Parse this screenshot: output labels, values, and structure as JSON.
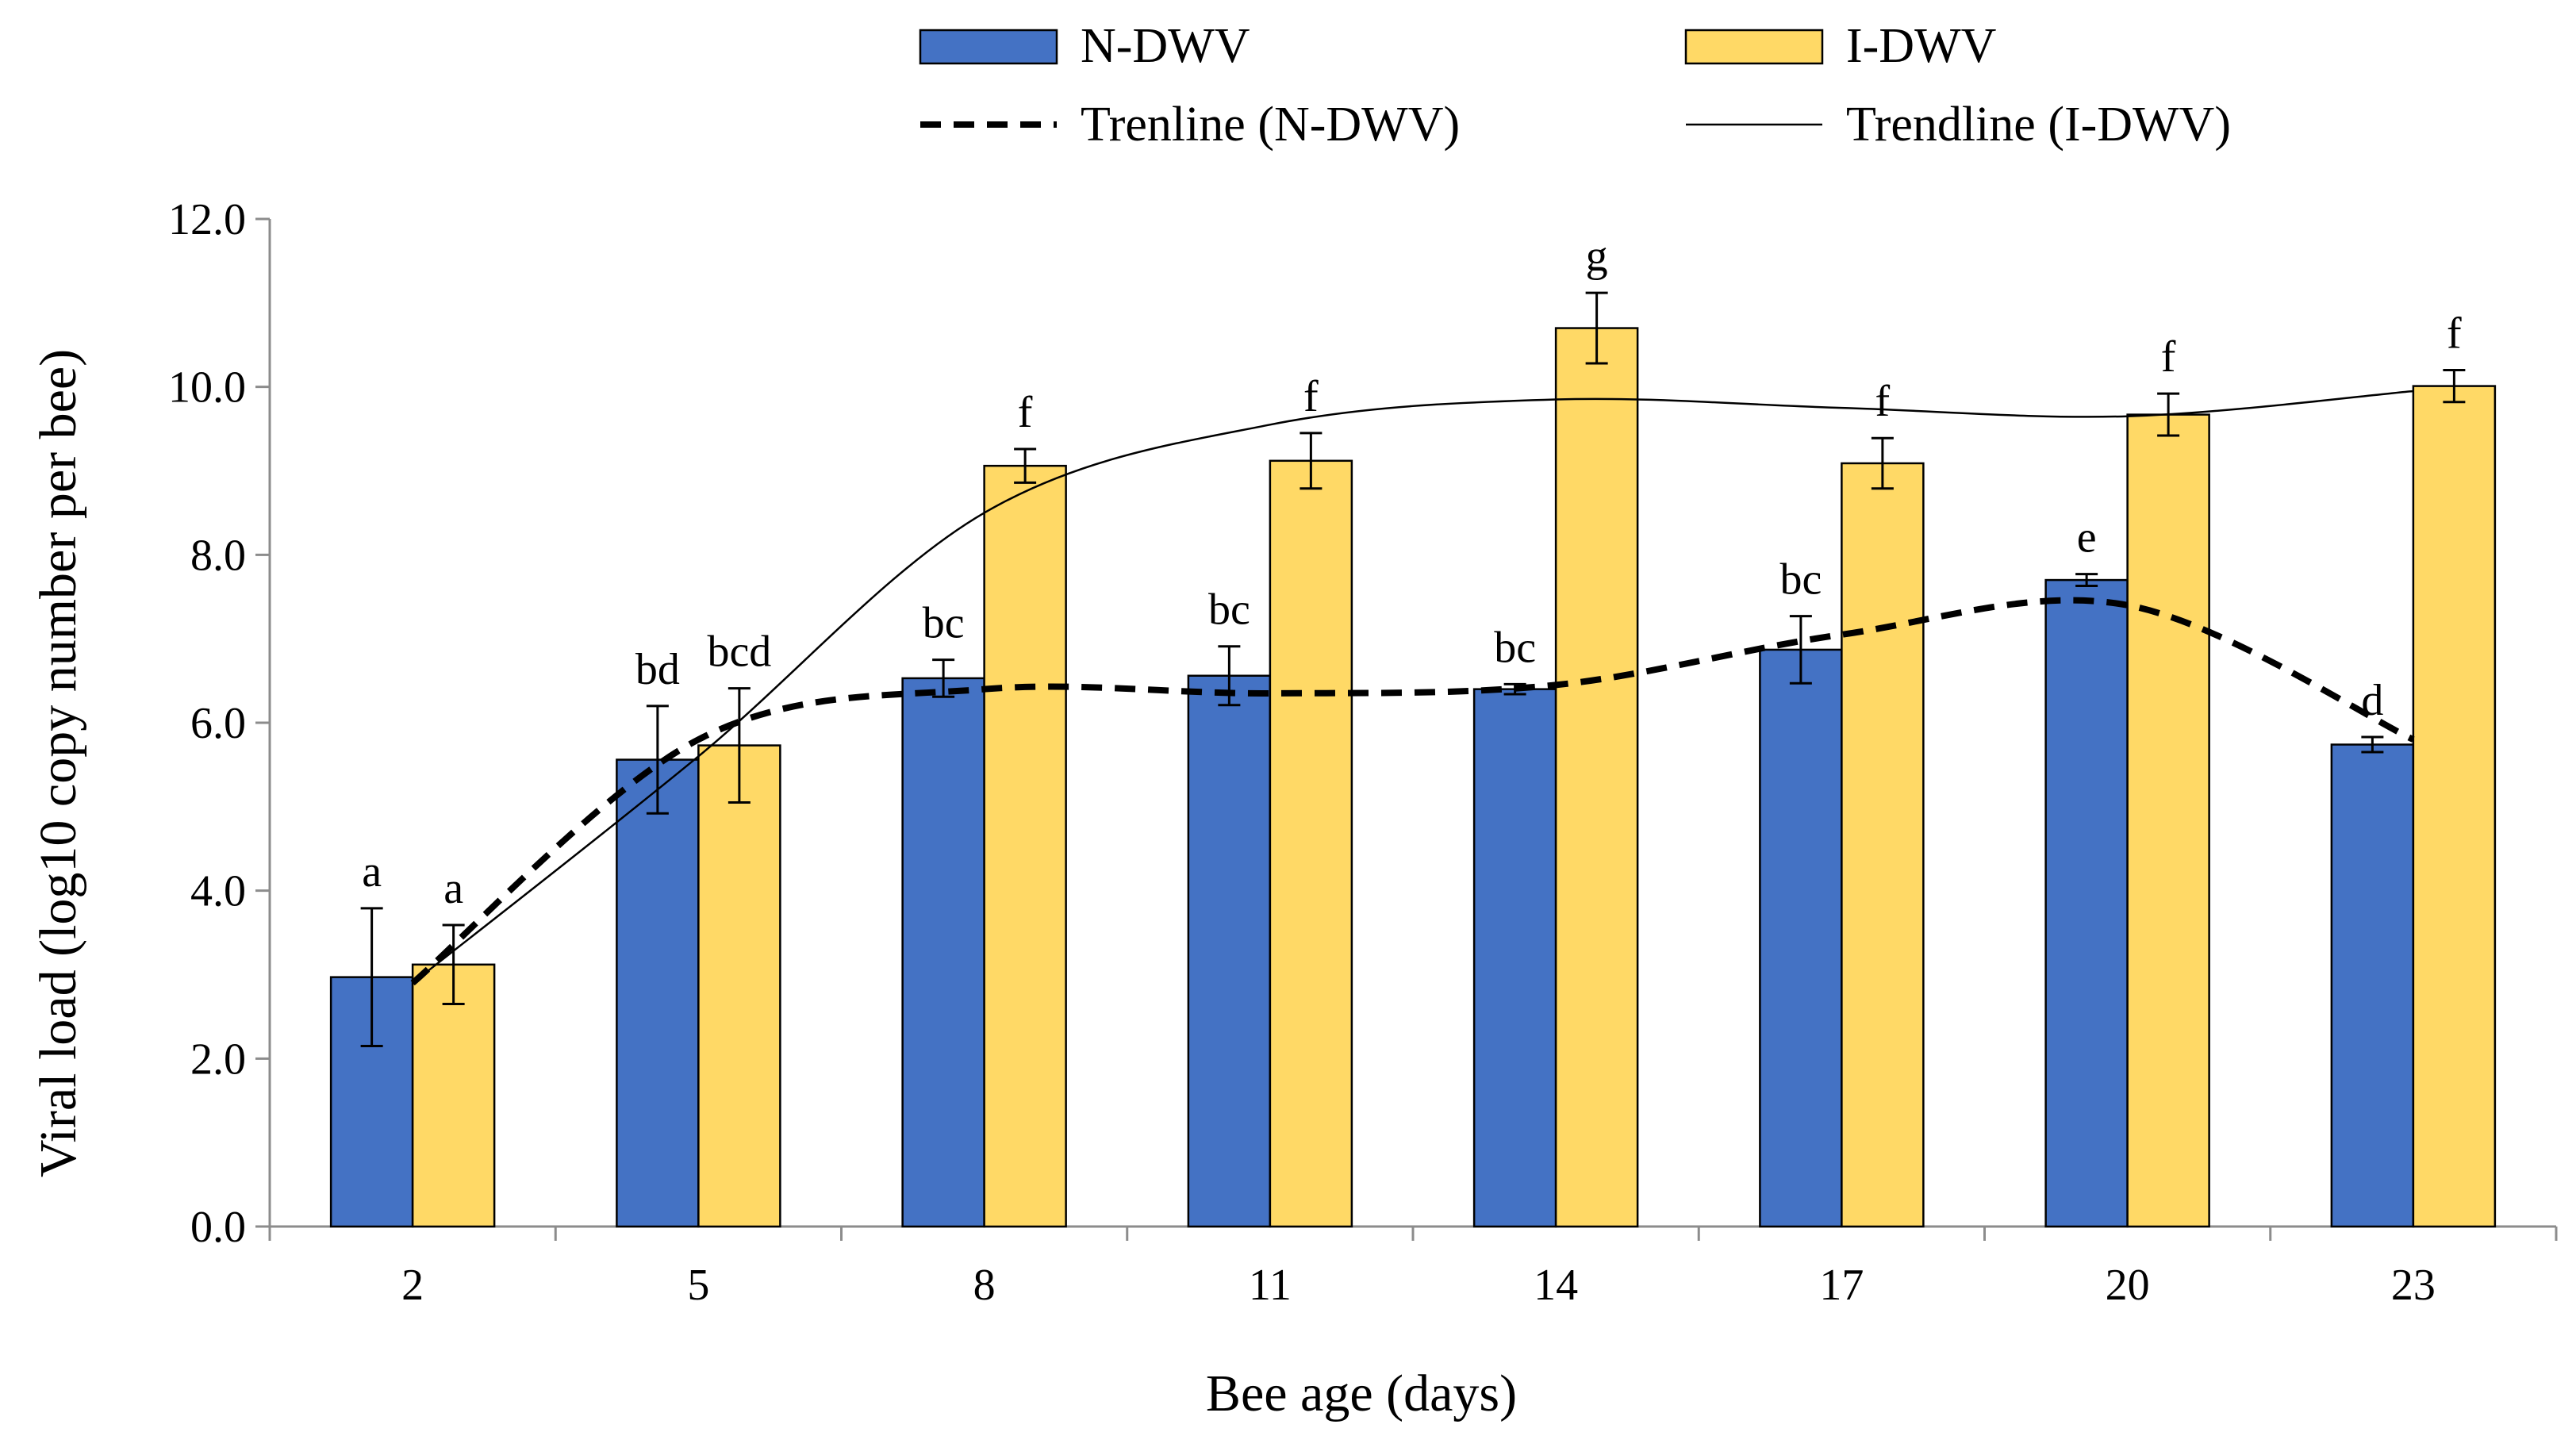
{
  "chart_data": {
    "type": "bar",
    "title": "",
    "xlabel": "Bee age (days)",
    "ylabel": "Viral load (log10 copy number per bee)",
    "categories": [
      "2",
      "5",
      "8",
      "11",
      "14",
      "17",
      "20",
      "23"
    ],
    "ylim": [
      0,
      12
    ],
    "yticks": [
      "0.0",
      "2.0",
      "4.0",
      "6.0",
      "8.0",
      "10.0",
      "12.0"
    ],
    "grid": false,
    "legend_position": "top",
    "series": [
      {
        "name": "N-DWV",
        "color": "#4472C4",
        "values": [
          2.97,
          5.56,
          6.53,
          6.56,
          6.4,
          6.87,
          7.7,
          5.74
        ],
        "errors": [
          0.82,
          0.64,
          0.22,
          0.35,
          0.06,
          0.4,
          0.07,
          0.09
        ],
        "letters": [
          "a",
          "bd",
          "bc",
          "bc",
          "bc",
          "bc",
          "e",
          "d"
        ]
      },
      {
        "name": "I-DWV",
        "color": "#FFD966",
        "values": [
          3.12,
          5.73,
          9.06,
          9.12,
          10.7,
          9.09,
          9.67,
          10.01
        ],
        "errors": [
          0.47,
          0.68,
          0.2,
          0.33,
          0.42,
          0.3,
          0.25,
          0.19
        ],
        "letters": [
          "a",
          "bcd",
          "f",
          "f",
          "g",
          "f",
          "f",
          "f"
        ]
      }
    ],
    "trendlines": [
      {
        "name": "Trenline (N-DWV)",
        "style": "dashed",
        "values": [
          2.9,
          5.8,
          6.4,
          6.35,
          6.45,
          7.05,
          7.4,
          5.8
        ]
      },
      {
        "name": "Trendline (I-DWV)",
        "style": "solid",
        "values": [
          2.9,
          5.6,
          8.5,
          9.55,
          9.85,
          9.75,
          9.65,
          9.95
        ]
      }
    ],
    "legend": [
      "N-DWV",
      "I-DWV",
      "Trenline (N-DWV)",
      "Trendline (I-DWV)"
    ]
  }
}
